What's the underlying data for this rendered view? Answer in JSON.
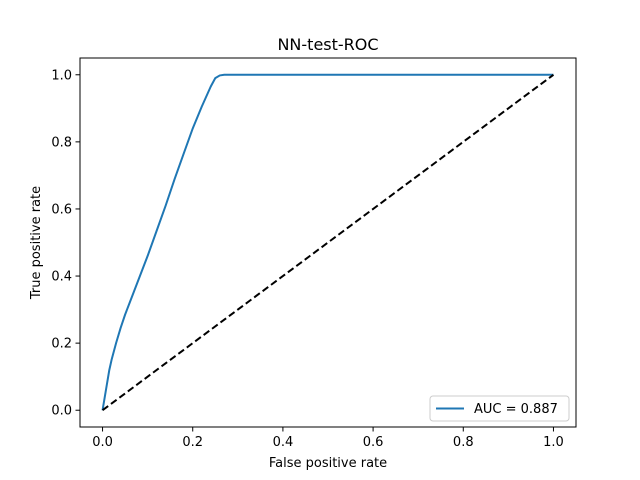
{
  "chart_data": {
    "type": "line",
    "title": "NN-test-ROC",
    "xlabel": "False positive rate",
    "ylabel": "True positive rate",
    "xlim": [
      -0.05,
      1.05
    ],
    "ylim": [
      -0.05,
      1.05
    ],
    "xticks": [
      0.0,
      0.2,
      0.4,
      0.6,
      0.8,
      1.0
    ],
    "yticks": [
      0.0,
      0.2,
      0.4,
      0.6,
      0.8,
      1.0
    ],
    "xtick_labels": [
      "0.0",
      "0.2",
      "0.4",
      "0.6",
      "0.8",
      "1.0"
    ],
    "ytick_labels": [
      "0.0",
      "0.2",
      "0.4",
      "0.6",
      "0.8",
      "1.0"
    ],
    "grid": false,
    "legend_position": "lower-right",
    "series": [
      {
        "name": "AUC = 0.887",
        "color": "#1f77b4",
        "style": "solid",
        "x": [
          0.0,
          0.005,
          0.01,
          0.015,
          0.02,
          0.03,
          0.04,
          0.05,
          0.06,
          0.07,
          0.08,
          0.1,
          0.12,
          0.14,
          0.16,
          0.18,
          0.2,
          0.22,
          0.24,
          0.25,
          0.26,
          0.27,
          0.3,
          0.5,
          0.7,
          0.9,
          1.0
        ],
        "y": [
          0.0,
          0.04,
          0.08,
          0.12,
          0.15,
          0.2,
          0.245,
          0.285,
          0.32,
          0.355,
          0.39,
          0.46,
          0.535,
          0.61,
          0.69,
          0.765,
          0.84,
          0.905,
          0.965,
          0.99,
          0.998,
          1.0,
          1.0,
          1.0,
          1.0,
          1.0,
          1.0
        ]
      },
      {
        "color": "#000000",
        "style": "dashed",
        "x": [
          0.0,
          1.0
        ],
        "y": [
          0.0,
          1.0
        ]
      }
    ]
  }
}
